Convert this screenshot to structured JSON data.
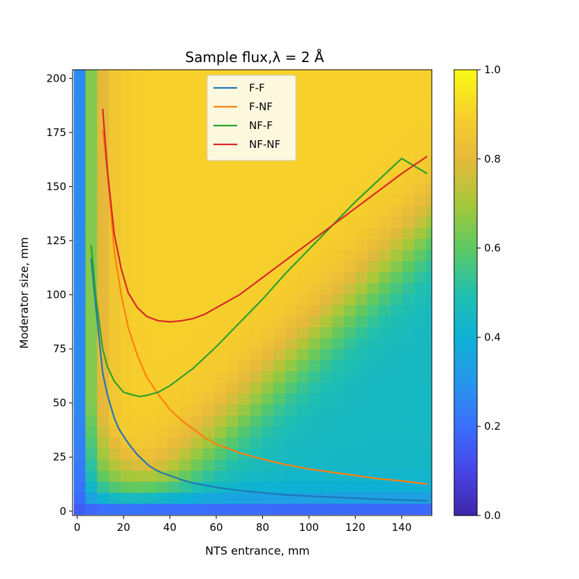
{
  "chart_data": {
    "type": "heatmap",
    "title": "Sample flux,λ = 2 Å",
    "xlabel": "NTS  entrance, mm",
    "ylabel": "Moderator size, mm",
    "xlim": [
      -2,
      153
    ],
    "ylim": [
      -2,
      204
    ],
    "x_ticks": [
      0,
      20,
      40,
      60,
      80,
      100,
      120,
      140
    ],
    "y_ticks": [
      0,
      25,
      50,
      75,
      100,
      125,
      150,
      175,
      200
    ],
    "colorbar": {
      "range": [
        0,
        1
      ],
      "ticks": [
        "0.0",
        "0.2",
        "0.4",
        "0.6",
        "0.8",
        "1.0"
      ]
    },
    "heatmap": {
      "x_range": [
        0,
        152
      ],
      "y_range": [
        0,
        204
      ],
      "nx": 30,
      "ny": 40,
      "description_of_values": "relative sample flux 0-1 vs NTS entrance (x) and moderator size (y)"
    },
    "legend": {
      "position": "top-center",
      "entries": [
        "F-F",
        "F-NF",
        "NF-F",
        "NF-NF"
      ]
    },
    "series": [
      {
        "name": "F-F",
        "color": "#1f77b4",
        "x": [
          6,
          8,
          11,
          13,
          16,
          18,
          21,
          23,
          26,
          28,
          31,
          34,
          37,
          40,
          45,
          50,
          55,
          60,
          70,
          80,
          90,
          100,
          110,
          120,
          130,
          140,
          151
        ],
        "y": [
          117,
          95,
          64,
          54,
          43,
          38,
          33,
          30,
          26,
          24,
          21,
          19,
          17.5,
          16.5,
          14.5,
          13,
          12,
          11,
          9.5,
          8.5,
          7.5,
          7,
          6.5,
          6,
          5.5,
          5.2,
          4.8
        ]
      },
      {
        "name": "F-NF",
        "color": "#ff7f0e",
        "x": [
          11,
          13,
          16,
          19,
          22,
          26,
          30,
          35,
          40,
          45,
          50,
          55,
          60,
          70,
          80,
          90,
          100,
          110,
          120,
          130,
          140,
          151
        ],
        "y": [
          176,
          157,
          120,
          100,
          85,
          72,
          62,
          54,
          47,
          42,
          38,
          34,
          31,
          27,
          24,
          21.5,
          19.5,
          18,
          16.5,
          15,
          14,
          12.5
        ]
      },
      {
        "name": "NF-F",
        "color": "#2ca02c",
        "x": [
          6,
          8,
          11,
          13,
          16,
          20,
          23,
          27,
          30,
          35,
          40,
          45,
          50,
          60,
          70,
          80,
          90,
          100,
          110,
          120,
          130,
          140,
          151
        ],
        "y": [
          123,
          100,
          75,
          67,
          60,
          55,
          54,
          53,
          53.5,
          55,
          58,
          62,
          66,
          76,
          87,
          98,
          110,
          121,
          132,
          143,
          153,
          163,
          156
        ]
      },
      {
        "name": "NF-NF",
        "color": "#d62728",
        "x": [
          11,
          13,
          16,
          19,
          22,
          26,
          30,
          35,
          40,
          45,
          50,
          55,
          60,
          70,
          80,
          90,
          100,
          110,
          120,
          130,
          140,
          151
        ],
        "y": [
          186,
          158,
          128,
          112,
          101,
          94,
          90,
          88,
          87.5,
          88,
          89,
          91,
          94,
          100,
          108,
          116,
          124,
          132,
          140,
          148,
          156,
          164
        ]
      }
    ]
  }
}
